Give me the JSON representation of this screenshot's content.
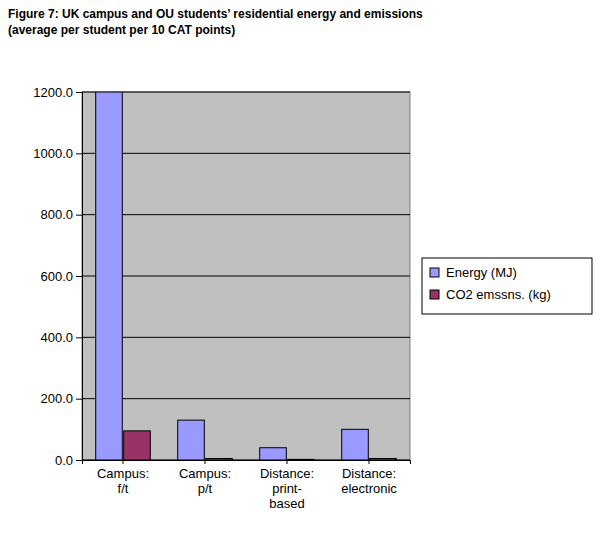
{
  "chart_data": {
    "type": "bar",
    "title": "Figure 7:  UK campus and OU students’ residential energy and emissions",
    "subtitle": "(average per student per 10 CAT points)",
    "categories": [
      "Campus: f/t",
      "Campus: p/t",
      "Distance: print-based",
      "Distance: electronic"
    ],
    "series": [
      {
        "name": "Energy (MJ)",
        "color": "#9999ff",
        "values": [
          1200,
          130,
          40,
          100
        ]
      },
      {
        "name": "CO2 emssns. (kg)",
        "color": "#993366",
        "values": [
          95,
          5,
          2,
          5
        ]
      }
    ],
    "ylim": [
      0,
      1200
    ],
    "yticks": [
      {
        "value": 0,
        "label": "0.0"
      },
      {
        "value": 200,
        "label": "200.0"
      },
      {
        "value": 400,
        "label": "400.0"
      },
      {
        "value": 600,
        "label": "600.0"
      },
      {
        "value": 800,
        "label": "800.0"
      },
      {
        "value": 1000,
        "label": "1000.0"
      },
      {
        "value": 1200,
        "label": "1200.0"
      }
    ],
    "grid": true,
    "legend": "right"
  }
}
